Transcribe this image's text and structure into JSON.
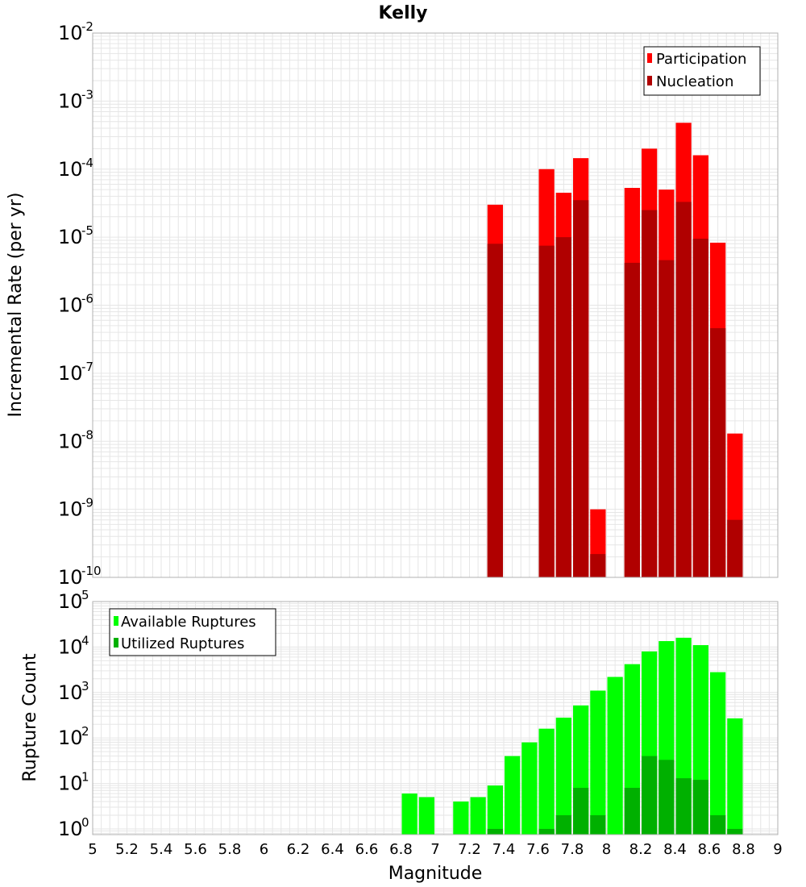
{
  "title": "Kelly",
  "x_axis": {
    "label": "Magnitude",
    "range": [
      5,
      9
    ],
    "ticks": [
      "5",
      "5.2",
      "5.4",
      "5.6",
      "5.8",
      "6",
      "6.2",
      "6.4",
      "6.6",
      "6.8",
      "7",
      "7.2",
      "7.4",
      "7.6",
      "7.8",
      "8",
      "8.2",
      "8.4",
      "8.6",
      "8.8",
      "9"
    ]
  },
  "colors": {
    "participation": "#ff0000",
    "nucleation": "#b00000",
    "available": "#00ff00",
    "utilized": "#00b000",
    "grid": "#e6e6e6",
    "frame": "#b0b0b0"
  },
  "chart_data": [
    {
      "type": "bar",
      "ylabel": "Incremental Rate (per yr)",
      "y_scale": "log",
      "ylim": [
        1e-10,
        0.01
      ],
      "y_tick_exponents": [
        "-10",
        "-9",
        "-8",
        "-7",
        "-6",
        "-5",
        "-4",
        "-3",
        "-2"
      ],
      "legend_position": "top-right",
      "x": [
        7.35,
        7.65,
        7.75,
        7.85,
        7.95,
        8.15,
        8.25,
        8.35,
        8.45,
        8.55,
        8.65,
        8.75
      ],
      "series": [
        {
          "name": "Participation",
          "color": "#ff0000",
          "values": [
            3e-05,
            0.0001,
            4.5e-05,
            0.000145,
            1e-09,
            5.3e-05,
            0.0002,
            5e-05,
            0.00048,
            0.00016,
            8.3e-06,
            1.3e-08
          ]
        },
        {
          "name": "Nucleation",
          "color": "#b00000",
          "values": [
            8e-06,
            7.5e-06,
            1e-05,
            3.5e-05,
            2.2e-10,
            4.2e-06,
            2.5e-05,
            4.6e-06,
            3.3e-05,
            9.5e-06,
            4.6e-07,
            7e-10
          ]
        }
      ]
    },
    {
      "type": "bar",
      "ylabel": "Rupture Count",
      "y_scale": "log",
      "ylim": [
        0.75,
        100000.0
      ],
      "y_tick_exponents": [
        "0",
        "1",
        "2",
        "3",
        "4",
        "5"
      ],
      "legend_position": "top-left",
      "x": [
        6.85,
        6.95,
        7.15,
        7.25,
        7.35,
        7.45,
        7.55,
        7.65,
        7.75,
        7.85,
        7.95,
        8.05,
        8.15,
        8.25,
        8.35,
        8.45,
        8.55,
        8.65,
        8.75
      ],
      "series": [
        {
          "name": "Available Ruptures",
          "color": "#00ff00",
          "values": [
            6,
            5,
            4,
            5,
            9,
            40,
            80,
            160,
            280,
            520,
            1100,
            2200,
            4200,
            8000,
            13500,
            16000,
            11000,
            2800,
            270
          ]
        },
        {
          "name": "Utilized Ruptures",
          "color": "#00b000",
          "values": [
            0,
            0,
            0,
            0,
            1,
            0,
            0,
            1,
            2,
            8,
            2,
            0,
            8,
            40,
            33,
            13,
            12,
            2,
            1
          ]
        }
      ]
    }
  ]
}
